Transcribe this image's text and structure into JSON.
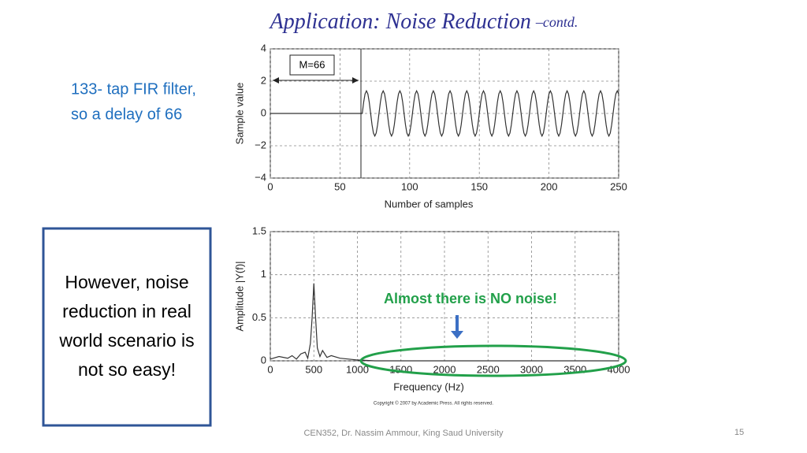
{
  "title": "Application: Noise Reduction",
  "title_suffix": "–contd.",
  "side_note": [
    "133- tap FIR filter,",
    "so a delay of 66"
  ],
  "box_text": [
    "However, noise",
    "reduction in real",
    "world scenario is",
    "not so easy!"
  ],
  "footer": "CEN352, Dr. Nassim Ammour, King Saud University",
  "page_number": "15",
  "chart_data": [
    {
      "type": "line",
      "xlabel": "Number of samples",
      "ylabel": "Sample value",
      "annotation": "M=66",
      "xlim": [
        0,
        250
      ],
      "ylim": [
        -4,
        4
      ],
      "xticks": [
        0,
        50,
        100,
        150,
        200,
        250
      ],
      "yticks": [
        {
          "value": -4,
          "label": "−4"
        },
        {
          "value": -2,
          "label": "−2"
        },
        0,
        2,
        4
      ],
      "grid": true,
      "color": "#333333",
      "x": [
        0,
        65,
        66,
        67,
        68,
        69,
        70,
        71,
        72,
        73,
        74,
        75,
        76,
        77,
        78,
        79,
        80,
        81,
        82,
        83,
        84,
        85,
        86,
        87,
        88,
        89,
        90,
        91,
        92,
        93,
        94,
        95,
        96,
        97,
        98,
        99,
        100,
        101,
        102,
        103,
        104,
        105,
        106,
        107,
        108,
        109,
        110,
        111,
        112,
        113,
        114,
        115,
        116,
        117,
        118,
        119,
        120,
        121,
        122,
        123,
        124,
        125,
        126,
        127,
        128,
        129,
        130,
        131,
        132,
        133,
        134,
        135,
        136,
        137,
        138,
        139,
        140,
        141,
        142,
        143,
        144,
        145,
        146,
        147,
        148,
        149,
        150,
        151,
        152,
        153,
        154,
        155,
        156,
        157,
        158,
        159,
        160,
        161,
        162,
        163,
        164,
        165,
        166,
        167,
        168,
        169,
        170,
        171,
        172,
        173,
        174,
        175,
        176,
        177,
        178,
        179,
        180,
        181,
        182,
        183,
        184,
        185,
        186,
        187,
        188,
        189,
        190,
        191,
        192,
        193,
        194,
        195,
        196,
        197,
        198,
        199,
        200,
        201,
        202,
        203,
        204,
        205,
        206,
        207,
        208,
        209,
        210,
        211,
        212,
        213,
        214,
        215,
        216,
        217,
        218,
        219,
        220,
        221,
        222,
        223,
        224,
        225,
        226,
        227,
        228,
        229,
        230,
        231,
        232,
        233,
        234,
        235,
        236,
        237,
        238,
        239,
        240,
        241,
        242,
        243,
        244,
        245,
        246,
        247,
        248,
        249,
        250
      ],
      "values": [
        0,
        0,
        0,
        0.7,
        1.21,
        1.4,
        1.21,
        0.7,
        0,
        -0.7,
        -1.21,
        -1.4,
        -1.21,
        -0.7,
        0,
        0.7,
        1.21,
        1.4,
        1.21,
        0.7,
        0,
        -0.7,
        -1.21,
        -1.4,
        -1.21,
        -0.7,
        0,
        0.7,
        1.21,
        1.4,
        1.21,
        0.7,
        0,
        -0.7,
        -1.21,
        -1.4,
        -1.21,
        -0.7,
        0,
        0.7,
        1.21,
        1.4,
        1.21,
        0.7,
        0,
        -0.7,
        -1.21,
        -1.4,
        -1.21,
        -0.7,
        0,
        0.7,
        1.21,
        1.4,
        1.21,
        0.7,
        0,
        -0.7,
        -1.21,
        -1.4,
        -1.21,
        -0.7,
        0,
        0.7,
        1.21,
        1.4,
        1.21,
        0.7,
        0,
        -0.7,
        -1.21,
        -1.4,
        -1.21,
        -0.7,
        0,
        0.7,
        1.21,
        1.4,
        1.21,
        0.7,
        0,
        -0.7,
        -1.21,
        -1.4,
        -1.21,
        -0.7,
        0,
        0.7,
        1.21,
        1.4,
        1.21,
        0.7,
        0,
        -0.7,
        -1.21,
        -1.4,
        -1.21,
        -0.7,
        0,
        0.7,
        1.21,
        1.4,
        1.21,
        0.7,
        0,
        -0.7,
        -1.21,
        -1.4,
        -1.21,
        -0.7,
        0,
        0.7,
        1.21,
        1.4,
        1.21,
        0.7,
        0,
        -0.7,
        -1.21,
        -1.4,
        -1.21,
        -0.7,
        0,
        0.7,
        1.21,
        1.4,
        1.21,
        0.7,
        0,
        -0.7,
        -1.21,
        -1.4,
        -1.21,
        -0.7,
        0,
        0.7,
        1.21,
        1.4,
        1.21,
        0.7,
        0,
        -0.7,
        -1.21,
        -1.4,
        -1.21,
        -0.7,
        0,
        0.7,
        1.21,
        1.4,
        1.21,
        0.7,
        0,
        -0.7,
        -1.21,
        -1.4,
        -1.21,
        -0.7,
        0,
        0.7,
        1.21,
        1.4,
        1.21,
        0.7,
        0,
        -0.7,
        -1.21,
        -1.4,
        -1.21,
        -0.7,
        0,
        0.7,
        1.21,
        1.4,
        1.21,
        0.7,
        0,
        -0.7,
        -1.21,
        -1.4,
        -1.21,
        -0.7,
        0,
        0.7,
        1.21,
        1.4,
        1.21
      ]
    },
    {
      "type": "line",
      "xlabel": "Frequency (Hz)",
      "ylabel": "Amplitude |Y(f)|",
      "annotation": "Almost there is NO noise!",
      "copyright": "Copyright © 2007 by Academic Press. All rights reserved.",
      "xlim": [
        0,
        4000
      ],
      "ylim": [
        0,
        1.5
      ],
      "xticks": [
        0,
        500,
        1000,
        1500,
        2000,
        2500,
        3000,
        3500,
        4000
      ],
      "yticks": [
        0,
        0.5,
        1,
        1.5
      ],
      "grid": true,
      "color": "#333333",
      "x": [
        0,
        100,
        200,
        250,
        300,
        350,
        400,
        430,
        460,
        480,
        500,
        520,
        540,
        570,
        600,
        650,
        700,
        800,
        900,
        1000,
        1200,
        1500,
        2000,
        2500,
        3000,
        3500,
        4000
      ],
      "values": [
        0.02,
        0.05,
        0.03,
        0.06,
        0.02,
        0.08,
        0.1,
        0.03,
        0.2,
        0.5,
        0.9,
        0.5,
        0.15,
        0.05,
        0.12,
        0.04,
        0.06,
        0.03,
        0.02,
        0.01,
        0,
        0,
        0,
        0,
        0,
        0,
        0
      ]
    }
  ]
}
